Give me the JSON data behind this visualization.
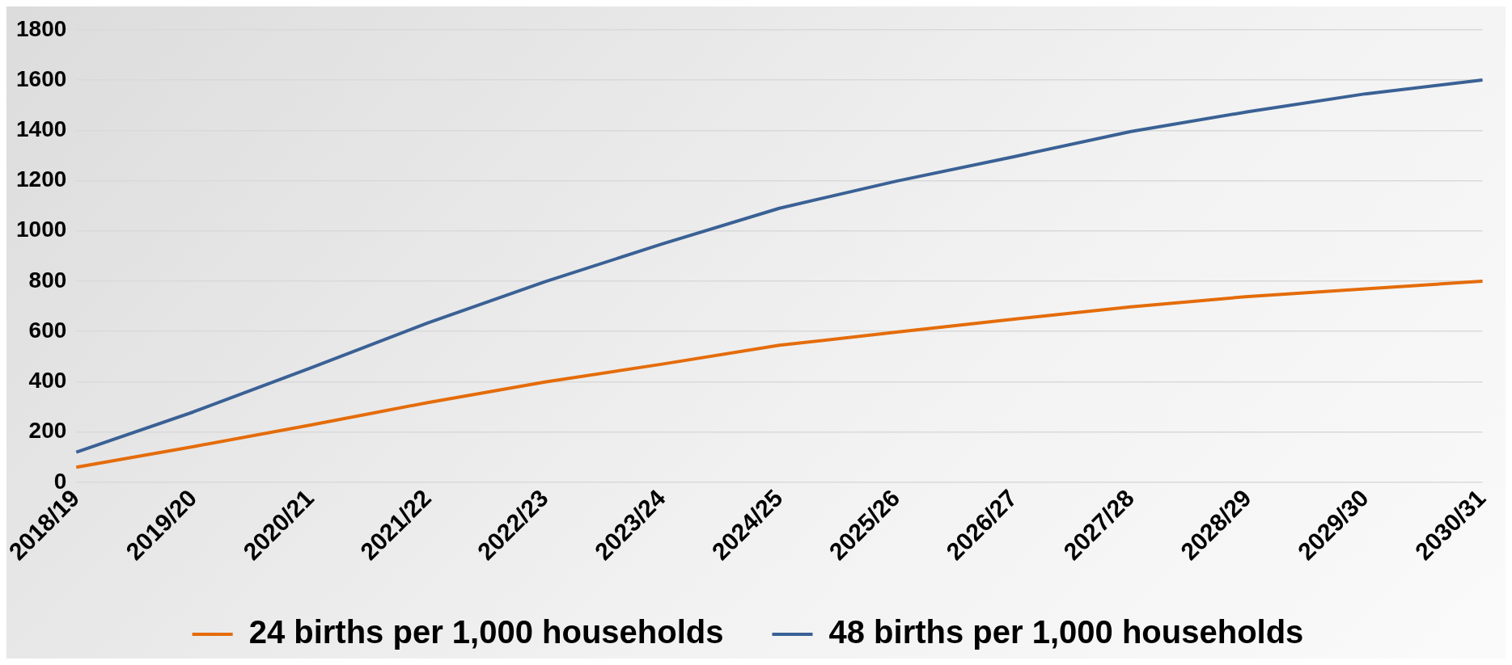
{
  "chart_data": {
    "type": "line",
    "categories": [
      "2018/19",
      "2019/20",
      "2020/21",
      "2021/22",
      "2022/23",
      "2023/24",
      "2024/25",
      "2025/26",
      "2026/27",
      "2027/28",
      "2028/29",
      "2029/30",
      "2030/31"
    ],
    "series": [
      {
        "name": "24 births per 1,000 households",
        "color": "#e46c0a",
        "values": [
          60,
          142,
          228,
          317,
          399,
          470,
          545,
          597,
          649,
          698,
          739,
          769,
          800
        ]
      },
      {
        "name": "48 births per 1,000 households",
        "color": "#3a6195",
        "values": [
          120,
          280,
          455,
          634,
          798,
          948,
          1090,
          1198,
          1295,
          1395,
          1474,
          1545,
          1600
        ]
      }
    ],
    "ylim": [
      0,
      1800
    ],
    "yticks": [
      0,
      200,
      400,
      600,
      800,
      1000,
      1200,
      1400,
      1600,
      1800
    ],
    "grid": "y",
    "legend": "bottom",
    "marker": "none",
    "line_style": "solid"
  }
}
